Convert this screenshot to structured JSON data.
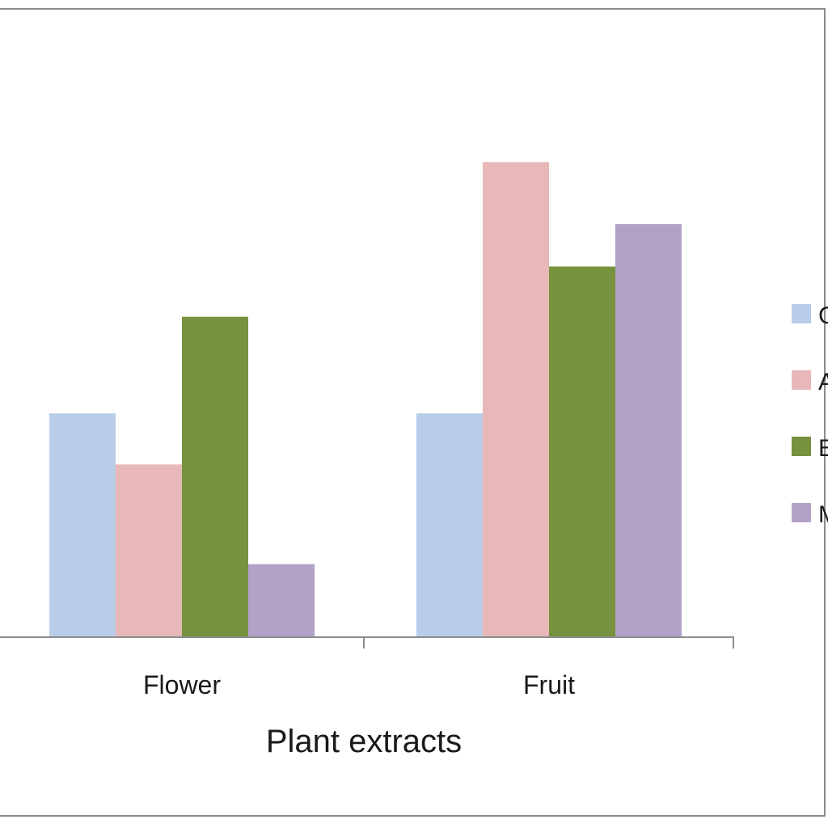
{
  "chart_data": {
    "type": "bar",
    "title": "",
    "xlabel": "Plant extracts",
    "ylabel": "",
    "categories": [
      "Flower",
      "Fruit"
    ],
    "series": [
      {
        "name": "C",
        "color": "#b9cde8",
        "values": [
          2.85,
          2.85
        ]
      },
      {
        "name": "A",
        "color": "#e8b8b8",
        "values": [
          2.2,
          6.05
        ]
      },
      {
        "name": "E",
        "color": "#76923c",
        "values": [
          4.08,
          4.72
        ]
      },
      {
        "name": "M",
        "color": "#b3a2c8",
        "values": [
          0.93,
          5.26
        ]
      }
    ],
    "ylim": [
      0,
      8
    ],
    "grid": false,
    "legend_position": "right"
  }
}
